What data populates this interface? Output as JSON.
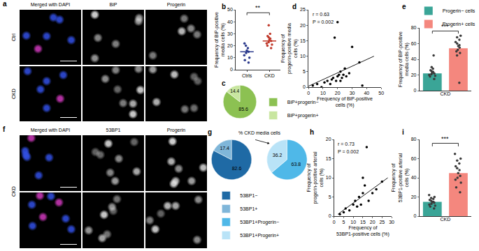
{
  "image_panels": [
    {
      "panel": "a",
      "columns": [
        "Merged with DAPI",
        "BiP",
        "Progerin"
      ],
      "rows": [
        "Ctrl",
        "CKD"
      ]
    },
    {
      "panel": "f",
      "columns": [
        "Merged with DAPI",
        "53BP1",
        "Progerin"
      ],
      "rows": [
        "CKD"
      ]
    }
  ],
  "chart_data": [
    {
      "panel": "b",
      "type": "dot",
      "categories": [
        "Ctrls",
        "CKD"
      ],
      "values": [
        [
          6,
          8,
          10,
          12,
          14,
          15,
          16,
          18,
          20,
          22
        ],
        [
          18,
          20,
          21,
          22,
          23,
          24,
          25,
          26,
          27,
          28,
          30,
          37
        ]
      ],
      "medians": [
        15,
        24
      ],
      "colors": [
        "#2b3a8c",
        "#c0392b"
      ],
      "ylabel": "Frequency of BiP-positive media cells (%)",
      "ylim": [
        0,
        50
      ],
      "yticks": [
        0,
        10,
        20,
        30,
        40,
        50
      ],
      "annotations": [
        "**"
      ]
    },
    {
      "panel": "c",
      "type": "pie",
      "pies": [
        {
          "labels": [
            "BiP+progerin−",
            "BiP+progerin+"
          ],
          "values": [
            85.6,
            14.4
          ],
          "colors": [
            "#8cc152",
            "#c8e6a0"
          ]
        }
      ],
      "data_labels": true,
      "legend": "right"
    },
    {
      "panel": "d",
      "type": "scatter",
      "x": [
        3,
        6,
        9,
        11,
        13,
        15,
        16,
        17,
        18,
        19,
        20,
        21,
        22,
        22,
        23,
        24,
        25,
        26,
        28,
        30,
        20,
        35,
        37
      ],
      "y": [
        0.5,
        1,
        0,
        1.5,
        2,
        1,
        2.5,
        3,
        16,
        2,
        3.5,
        4,
        2,
        5,
        3,
        4,
        6,
        3.5,
        4.5,
        13,
        21,
        8,
        0.5
      ],
      "trendline": {
        "x": [
          0,
          45
        ],
        "y": [
          0.3,
          10
        ]
      },
      "color": "#000000",
      "xlabel": "Frequency of BiP-positive cells (%)",
      "ylabel": "Frequency of progerin-positive media cells (%)",
      "xlim": [
        0,
        50
      ],
      "xticks": [
        0,
        10,
        20,
        30,
        40,
        50
      ],
      "ylim": [
        0,
        25
      ],
      "yticks": [
        0,
        5,
        10,
        15,
        20,
        25
      ],
      "annotations": [
        "r = 0.63",
        "P = 0.002"
      ]
    },
    {
      "panel": "e",
      "type": "bar",
      "categories": [
        "Progerin− cells",
        "Progerin+ cells"
      ],
      "values": [
        22,
        54
      ],
      "colors": [
        "#3aa597",
        "#f4877e"
      ],
      "points": [
        [
          15,
          18,
          20,
          22,
          24,
          25,
          28,
          30,
          19,
          21,
          23,
          26,
          45
        ],
        [
          10,
          45,
          50,
          52,
          55,
          57,
          60,
          62,
          65,
          68,
          70,
          48,
          58
        ]
      ],
      "xlabel": "CKD",
      "ylabel": "Frequency of BiP-positive media cells (%)",
      "ylim": [
        0,
        80
      ],
      "yticks": [
        0,
        20,
        40,
        60,
        80
      ],
      "annotations": [
        "***"
      ],
      "tick_labels": "y",
      "legend": "top"
    },
    {
      "panel": "g",
      "type": "pie",
      "title": "% CKD media cells",
      "pies": [
        {
          "labels": [
            "53BP1−",
            "53BP1+"
          ],
          "values": [
            82.6,
            17.4
          ],
          "colors": [
            "#1f6aa5",
            "#7fb6d9"
          ]
        },
        {
          "labels": [
            "53BP1+Progerin−",
            "53BP1+Progerin+"
          ],
          "values": [
            63.8,
            36.2
          ],
          "colors": [
            "#4fb8e8",
            "#b9e3f7"
          ]
        }
      ],
      "data_labels": true,
      "legend": "bottom"
    },
    {
      "panel": "h",
      "type": "scatter",
      "x": [
        3,
        5,
        6,
        8,
        10,
        11,
        12,
        13,
        14,
        15,
        15,
        16,
        17,
        18,
        20,
        22,
        25
      ],
      "y": [
        0.5,
        1,
        2,
        1.5,
        3,
        4,
        2.5,
        5,
        3,
        6,
        10,
        8,
        18,
        4,
        6,
        7,
        9
      ],
      "trendline": {
        "x": [
          2,
          28
        ],
        "y": [
          0.5,
          10
        ]
      },
      "color": "#000000",
      "xlabel": "Frequency of 53BP1-positive cells (%)",
      "ylabel": "Frequency of progerin-positive arterial cells (%)",
      "xlim": [
        0,
        30
      ],
      "xticks": [
        0,
        5,
        10,
        15,
        20,
        25,
        30
      ],
      "ylim": [
        0,
        20
      ],
      "yticks": [
        0,
        5,
        10,
        15,
        20
      ],
      "annotations": [
        "r = 0.73",
        "P = 0.002"
      ]
    },
    {
      "panel": "i",
      "type": "bar",
      "categories": [
        "Progerin− cells",
        "Progerin+ cells"
      ],
      "values": [
        15,
        45
      ],
      "colors": [
        "#3aa597",
        "#f4877e"
      ],
      "points": [
        [
          10,
          12,
          15,
          18,
          20,
          14,
          16,
          8,
          22,
          13,
          17,
          19,
          11,
          15
        ],
        [
          30,
          40,
          45,
          50,
          55,
          60,
          65,
          35,
          42,
          48,
          25,
          52,
          58,
          38
        ]
      ],
      "xlabel": "CKD",
      "ylabel": "Frequency of 53BP1-positive arterial cells (%)",
      "ylim": [
        0,
        80
      ],
      "yticks": [
        0,
        20,
        40,
        60,
        80
      ],
      "annotations": [
        "***"
      ],
      "tick_labels": "y"
    }
  ]
}
